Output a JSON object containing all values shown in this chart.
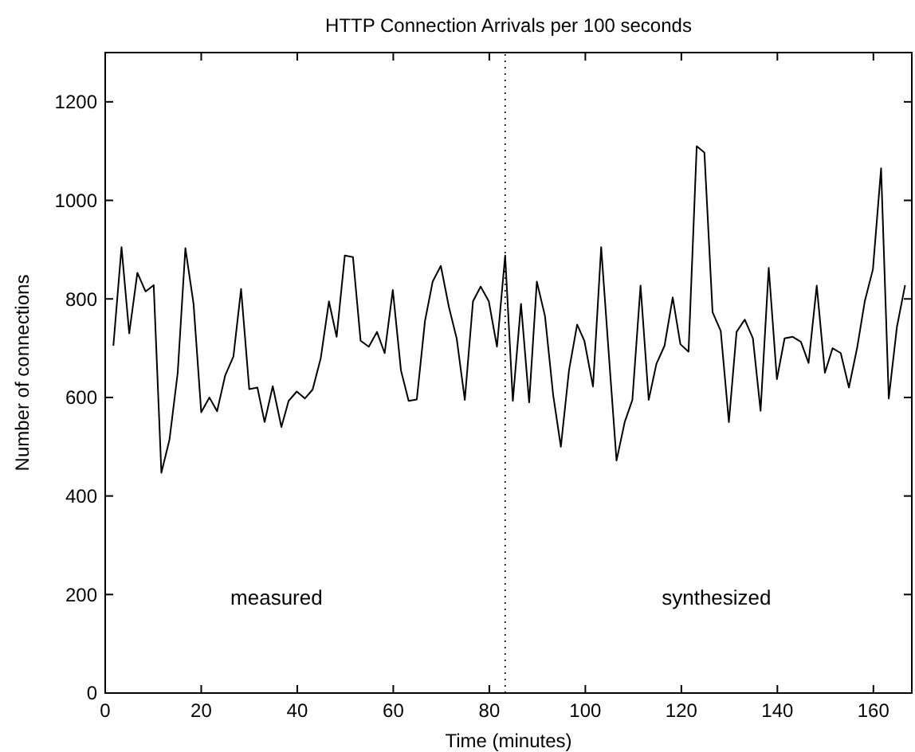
{
  "chart_data": {
    "type": "line",
    "title": "HTTP Connection Arrivals per 100 seconds",
    "xlabel": "Time (minutes)",
    "ylabel": "Number of connections",
    "x": [
      1.7,
      3.4,
      5.0,
      6.7,
      8.4,
      10.1,
      11.7,
      13.4,
      15.1,
      16.7,
      18.4,
      20.0,
      21.7,
      23.3,
      25.0,
      26.7,
      28.3,
      30.0,
      31.7,
      33.2,
      34.9,
      36.7,
      38.2,
      39.9,
      41.6,
      43.2,
      44.9,
      46.6,
      48.2,
      49.9,
      51.6,
      53.2,
      54.9,
      56.6,
      58.2,
      59.9,
      61.6,
      63.2,
      64.9,
      66.6,
      68.2,
      69.9,
      71.6,
      73.2,
      74.9,
      76.6,
      78.2,
      79.9,
      81.6,
      83.3,
      84.9,
      86.6,
      88.3,
      89.9,
      91.6,
      93.3,
      94.9,
      96.6,
      98.3,
      99.8,
      101.6,
      103.3,
      104.8,
      106.5,
      108.2,
      109.8,
      111.5,
      113.2,
      114.8,
      116.5,
      118.2,
      119.8,
      121.5,
      123.2,
      124.8,
      126.5,
      128.2,
      129.9,
      131.5,
      133.2,
      134.9,
      136.5,
      138.2,
      139.9,
      141.5,
      143.2,
      144.9,
      146.5,
      148.2,
      149.9,
      151.5,
      153.2,
      154.9,
      156.6,
      158.2,
      159.9,
      161.6,
      163.2,
      164.9,
      166.6
    ],
    "series": [
      {
        "color": "#000000",
        "values": [
          705,
          905,
          730,
          853,
          815,
          828,
          447,
          515,
          650,
          903,
          790,
          570,
          600,
          572,
          645,
          683,
          820,
          617,
          620,
          550,
          623,
          540,
          593,
          612,
          598,
          616,
          680,
          795,
          723,
          888,
          885,
          715,
          703,
          733,
          690,
          818,
          655,
          593,
          596,
          755,
          835,
          867,
          783,
          720,
          595,
          795,
          825,
          795,
          703,
          888,
          593,
          790,
          590,
          835,
          765,
          605,
          500,
          655,
          748,
          715,
          622,
          905,
          700,
          472,
          550,
          595,
          827,
          595,
          668,
          705,
          803,
          708,
          693,
          1110,
          1097,
          773,
          735,
          550,
          733,
          758,
          720,
          573,
          863,
          637,
          720,
          723,
          713,
          670,
          827,
          650,
          700,
          690,
          620,
          700,
          795,
          860,
          1065,
          598,
          743,
          828
        ]
      }
    ],
    "xlim": [
      0,
      168
    ],
    "ylim": [
      0,
      1300
    ],
    "xticks": [
      0,
      20,
      40,
      60,
      80,
      100,
      120,
      140,
      160
    ],
    "yticks": [
      0,
      200,
      400,
      600,
      800,
      1000,
      1200
    ],
    "ref_lines": [
      {
        "axis": "x",
        "value": 83.3,
        "line_style": "dotted",
        "color": "#000000"
      }
    ],
    "annotations": [
      "measured",
      "synthesized"
    ],
    "grid": false,
    "marker": "none",
    "line_style": "solid"
  }
}
